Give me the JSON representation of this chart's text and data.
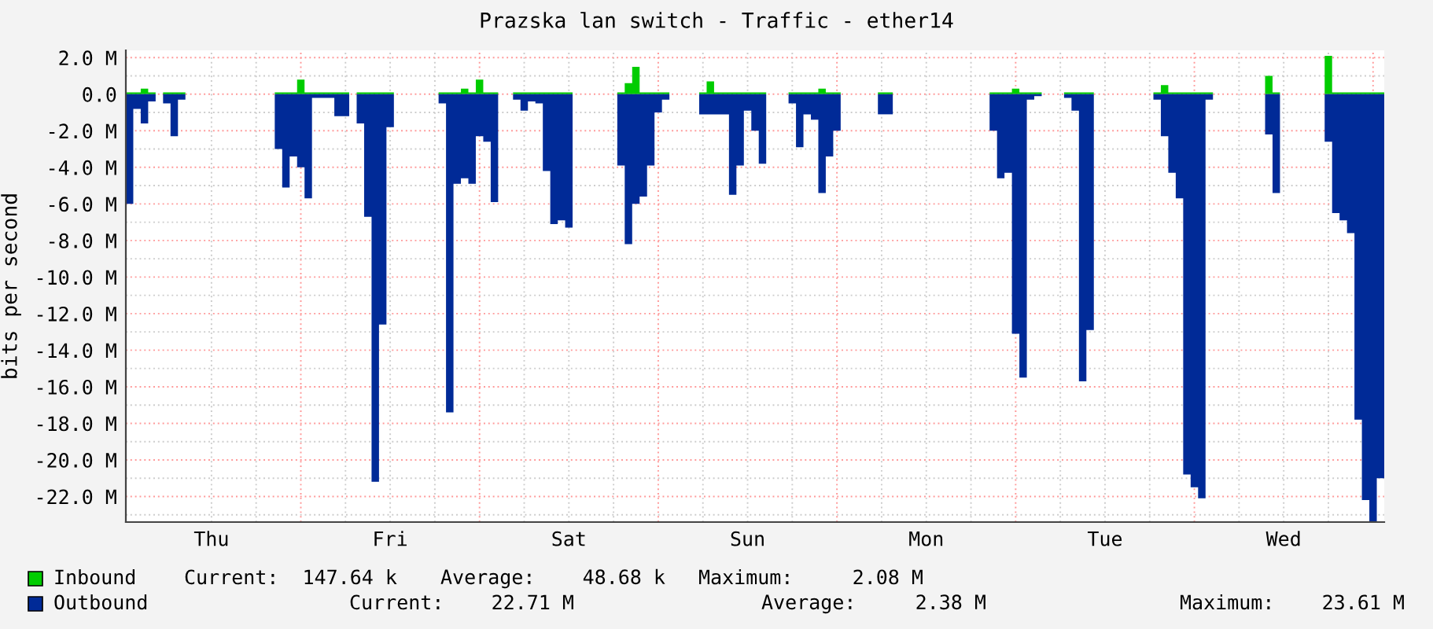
{
  "chart_data": {
    "type": "area",
    "title": "Prazska lan switch - Traffic - ether14",
    "ylabel": "bits per second",
    "categories": [
      null,
      null,
      null,
      null,
      null,
      null,
      null,
      null,
      null,
      null,
      null,
      "Thu",
      null,
      null,
      null,
      null,
      null,
      null,
      null,
      null,
      null,
      null,
      null,
      null,
      null,
      null,
      null,
      null,
      null,
      null,
      null,
      null,
      null,
      null,
      null,
      "Fri",
      null,
      null,
      null,
      null,
      null,
      null,
      null,
      null,
      null,
      null,
      null,
      null,
      null,
      null,
      null,
      null,
      null,
      null,
      null,
      null,
      null,
      null,
      null,
      "Sat",
      null,
      null,
      null,
      null,
      null,
      null,
      null,
      null,
      null,
      null,
      null,
      null,
      null,
      null,
      null,
      null,
      null,
      null,
      null,
      null,
      null,
      null,
      null,
      "Sun",
      null,
      null,
      null,
      null,
      null,
      null,
      null,
      null,
      null,
      null,
      null,
      null,
      null,
      null,
      null,
      null,
      null,
      null,
      null,
      null,
      null,
      null,
      null,
      "Mon",
      null,
      null,
      null,
      null,
      null,
      null,
      null,
      null,
      null,
      null,
      null,
      null,
      null,
      null,
      null,
      null,
      null,
      null,
      null,
      null,
      null,
      null,
      null,
      "Tue",
      null,
      null,
      null,
      null,
      null,
      null,
      null,
      null,
      null,
      null,
      null,
      null,
      null,
      null,
      null,
      null,
      null,
      null,
      null,
      null,
      null,
      null,
      null,
      "Wed",
      null,
      null,
      null,
      null,
      null,
      null,
      null,
      null,
      null,
      null,
      null,
      null,
      null
    ],
    "ylim": [
      -23.4,
      2.4
    ],
    "yticks": [
      {
        "value": 2,
        "label": "2.0 M"
      },
      {
        "value": 1,
        "label": null
      },
      {
        "value": 0,
        "label": "0.0"
      },
      {
        "value": -1,
        "label": null
      },
      {
        "value": -2,
        "label": "-2.0 M"
      },
      {
        "value": -3,
        "label": null
      },
      {
        "value": -4,
        "label": "-4.0 M"
      },
      {
        "value": -5,
        "label": null
      },
      {
        "value": -6,
        "label": "-6.0 M"
      },
      {
        "value": -7,
        "label": null
      },
      {
        "value": -8,
        "label": "-8.0 M"
      },
      {
        "value": -9,
        "label": null
      },
      {
        "value": -10,
        "label": "-10.0 M"
      },
      {
        "value": -11,
        "label": null
      },
      {
        "value": -12,
        "label": "-12.0 M"
      },
      {
        "value": -13,
        "label": null
      },
      {
        "value": -14,
        "label": "-14.0 M"
      },
      {
        "value": -15,
        "label": null
      },
      {
        "value": -16,
        "label": "-16.0 M"
      },
      {
        "value": -17,
        "label": null
      },
      {
        "value": -18,
        "label": "-18.0 M"
      },
      {
        "value": -19,
        "label": null
      },
      {
        "value": -20,
        "label": "-20.0 M"
      },
      {
        "value": -21,
        "label": null
      },
      {
        "value": -22,
        "label": "-22.0 M"
      },
      {
        "value": -23,
        "label": null
      }
    ],
    "grid": true,
    "legend": "bottom",
    "series": [
      {
        "name": "Inbound",
        "color": "#00cc00",
        "values": [
          0.1,
          0.1,
          0.3,
          0.1,
          null,
          0.1,
          0.1,
          0.1,
          null,
          null,
          null,
          null,
          null,
          null,
          null,
          null,
          null,
          null,
          null,
          null,
          0.1,
          0.1,
          0.1,
          0.8,
          0.1,
          0.1,
          0.1,
          0.1,
          0.1,
          0.1,
          null,
          0.1,
          0.1,
          0.1,
          0.1,
          0.1,
          null,
          null,
          null,
          null,
          null,
          null,
          0.1,
          0.1,
          0.1,
          0.3,
          0.1,
          0.8,
          0.1,
          0.1,
          null,
          null,
          0.1,
          0.1,
          0.1,
          0.1,
          0.1,
          0.1,
          0.1,
          0.1,
          null,
          null,
          null,
          null,
          null,
          null,
          0.1,
          0.6,
          1.5,
          0.1,
          0.1,
          0.1,
          0.1,
          null,
          null,
          null,
          null,
          0.1,
          0.7,
          0.1,
          0.1,
          0.1,
          0.1,
          0.1,
          0.1,
          0.1,
          null,
          null,
          null,
          0.1,
          0.1,
          0.1,
          0.1,
          0.3,
          0.1,
          0.1,
          null,
          null,
          null,
          null,
          null,
          0.1,
          0.1,
          null,
          null,
          null,
          null,
          null,
          null,
          null,
          null,
          null,
          null,
          null,
          null,
          null,
          0.1,
          0.1,
          0.1,
          0.3,
          0.1,
          0.1,
          0.1,
          null,
          null,
          null,
          0.1,
          0.1,
          0.1,
          0.1,
          null,
          null,
          null,
          null,
          null,
          null,
          null,
          null,
          0.1,
          0.5,
          0.1,
          0.1,
          0.1,
          0.1,
          0.1,
          0.1,
          null,
          null,
          null,
          null,
          null,
          null,
          null,
          1.0,
          0.1,
          null,
          null,
          null,
          null,
          null,
          null,
          2.1,
          0.1,
          0.1,
          0.1,
          0.1,
          0.1,
          0.1,
          0.1
        ]
      },
      {
        "name": "Outbound",
        "color": "#002a97",
        "values": [
          -6.0,
          -0.8,
          -1.6,
          -0.4,
          null,
          -0.5,
          -2.3,
          -0.3,
          null,
          null,
          null,
          null,
          null,
          null,
          null,
          null,
          null,
          null,
          null,
          null,
          -3.0,
          -5.1,
          -3.4,
          -4.0,
          -5.7,
          -0.2,
          -0.2,
          -0.2,
          -1.2,
          -1.2,
          null,
          -1.6,
          -6.7,
          -21.2,
          -12.6,
          -1.8,
          null,
          null,
          null,
          null,
          null,
          null,
          -0.5,
          -17.4,
          -4.9,
          -4.6,
          -4.9,
          -2.3,
          -2.6,
          -5.9,
          null,
          null,
          -0.3,
          -0.9,
          -0.4,
          -0.5,
          -4.2,
          -7.1,
          -6.9,
          -7.3,
          null,
          null,
          null,
          null,
          null,
          null,
          -3.9,
          -8.2,
          -6.0,
          -5.6,
          -3.9,
          -1.0,
          -0.3,
          null,
          null,
          null,
          null,
          -1.1,
          -1.1,
          -1.1,
          -1.1,
          -5.5,
          -3.9,
          -0.9,
          -2.0,
          -3.8,
          null,
          null,
          null,
          -0.5,
          -2.9,
          -1.1,
          -1.4,
          -5.4,
          -3.4,
          -2.0,
          null,
          null,
          null,
          null,
          null,
          -1.1,
          -1.1,
          null,
          null,
          null,
          null,
          null,
          null,
          null,
          null,
          null,
          null,
          null,
          null,
          null,
          -2.0,
          -4.6,
          -4.3,
          -13.1,
          -15.5,
          -0.3,
          -0.1,
          null,
          null,
          null,
          -0.2,
          -0.9,
          -15.7,
          -12.9,
          null,
          null,
          null,
          null,
          null,
          null,
          null,
          null,
          -0.3,
          -2.3,
          -4.3,
          -5.7,
          -20.8,
          -21.5,
          -22.1,
          -0.3,
          null,
          null,
          null,
          null,
          null,
          null,
          null,
          -2.2,
          -5.4,
          null,
          null,
          null,
          null,
          null,
          null,
          -2.6,
          -6.5,
          -6.9,
          -7.6,
          -17.8,
          -22.2,
          -23.4,
          -21.0
        ]
      }
    ],
    "annotations": [
      "Current:  147.64 k",
      "Average:    48.68 k",
      "Maximum:     2.08 M",
      "Current:    22.71 M",
      "Average:     2.38 M",
      "Maximum:    23.61 M"
    ]
  }
}
